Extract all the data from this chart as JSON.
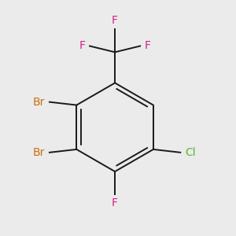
{
  "background_color": "#ebebeb",
  "bond_color": "#1a1a1a",
  "bond_width": 1.4,
  "figsize": [
    3.0,
    3.0
  ],
  "dpi": 100,
  "xlim": [
    -1.8,
    1.8
  ],
  "ylim": [
    -1.9,
    1.9
  ],
  "label_fontsize": 10,
  "br_color": "#c87010",
  "f_color": "#d6218b",
  "cl_color": "#5ab52b"
}
